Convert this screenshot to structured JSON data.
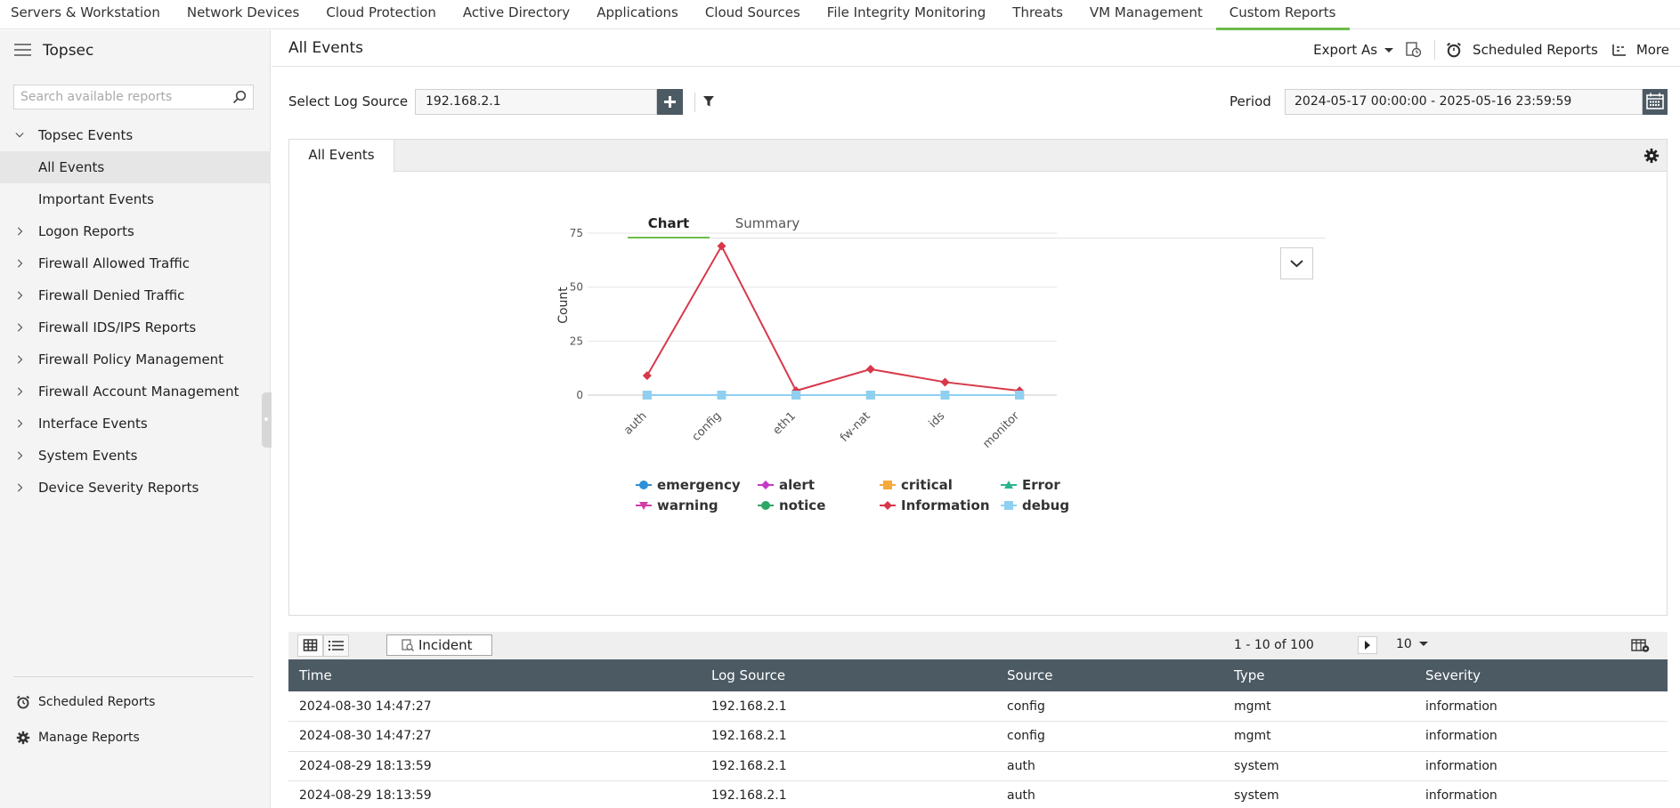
{
  "topnav": {
    "items": [
      "Servers & Workstation",
      "Network Devices",
      "Cloud Protection",
      "Active Directory",
      "Applications",
      "Cloud Sources",
      "File Integrity Monitoring",
      "Threats",
      "VM Management",
      "Custom Reports"
    ],
    "active_index": 9
  },
  "sidebar": {
    "title": "Topsec",
    "search_placeholder": "Search available reports",
    "tree": [
      {
        "label": "Topsec Events",
        "expanded": true
      },
      {
        "label": "All Events",
        "selected": true
      },
      {
        "label": "Important Events"
      },
      {
        "label": "Logon Reports"
      },
      {
        "label": "Firewall Allowed Traffic"
      },
      {
        "label": "Firewall Denied Traffic"
      },
      {
        "label": "Firewall IDS/IPS Reports"
      },
      {
        "label": "Firewall Policy Management"
      },
      {
        "label": "Firewall Account Management"
      },
      {
        "label": "Interface Events"
      },
      {
        "label": "System Events"
      },
      {
        "label": "Device Severity Reports"
      }
    ],
    "footer": {
      "scheduled": "Scheduled Reports",
      "manage": "Manage Reports"
    }
  },
  "header": {
    "title": "All Events",
    "export_label": "Export As",
    "scheduled_label": "Scheduled Reports",
    "more_label": "More"
  },
  "filters": {
    "log_source_label": "Select Log Source",
    "log_source_value": "192.168.2.1",
    "period_label": "Period",
    "period_value": "2024-05-17 00:00:00 - 2025-05-16 23:59:59"
  },
  "panel": {
    "tab_label": "All Events",
    "chart_tab": "Chart",
    "summary_tab": "Summary"
  },
  "chart_data": {
    "type": "line",
    "categories": [
      "auth",
      "config",
      "eth1",
      "fw-nat",
      "ids",
      "monitor"
    ],
    "ylabel": "Count",
    "xlabel": "",
    "ylim": [
      0,
      75
    ],
    "yticks": [
      0,
      25,
      50,
      75
    ],
    "grid": true,
    "legend_position": "bottom",
    "series": [
      {
        "name": "emergency",
        "color": "#2f8fd8",
        "marker": "circle",
        "values": [
          0,
          0,
          0,
          0,
          0,
          0
        ]
      },
      {
        "name": "alert",
        "color": "#c43ac8",
        "marker": "diamond",
        "values": [
          0,
          0,
          0,
          0,
          0,
          0
        ]
      },
      {
        "name": "critical",
        "color": "#f5a93b",
        "marker": "square",
        "values": [
          0,
          0,
          0,
          0,
          0,
          0
        ]
      },
      {
        "name": "Error",
        "color": "#2bb38f",
        "marker": "triangle",
        "values": [
          0,
          0,
          0,
          0,
          0,
          0
        ]
      },
      {
        "name": "warning",
        "color": "#d23fa6",
        "marker": "triangle-down",
        "values": [
          0,
          0,
          0,
          0,
          0,
          0
        ]
      },
      {
        "name": "notice",
        "color": "#2ea766",
        "marker": "circle",
        "values": [
          0,
          0,
          0,
          0,
          0,
          0
        ]
      },
      {
        "name": "Information",
        "color": "#d8384a",
        "marker": "diamond",
        "values": [
          9,
          69,
          2,
          12,
          6,
          2
        ]
      },
      {
        "name": "debug",
        "color": "#8fd0f0",
        "marker": "square",
        "values": [
          0,
          0,
          0,
          0,
          0,
          0
        ]
      }
    ]
  },
  "table_toolbar": {
    "incident_label": "Incident",
    "pager_text": "1 - 10 of 100",
    "per_page": "10"
  },
  "table": {
    "columns": [
      "Time",
      "Log Source",
      "Source",
      "Type",
      "Severity"
    ],
    "rows": [
      [
        "2024-08-30 14:47:27",
        "192.168.2.1",
        "config",
        "mgmt",
        "information"
      ],
      [
        "2024-08-30 14:47:27",
        "192.168.2.1",
        "config",
        "mgmt",
        "information"
      ],
      [
        "2024-08-29 18:13:59",
        "192.168.2.1",
        "auth",
        "system",
        "information"
      ],
      [
        "2024-08-29 18:13:59",
        "192.168.2.1",
        "auth",
        "system",
        "information"
      ]
    ]
  }
}
